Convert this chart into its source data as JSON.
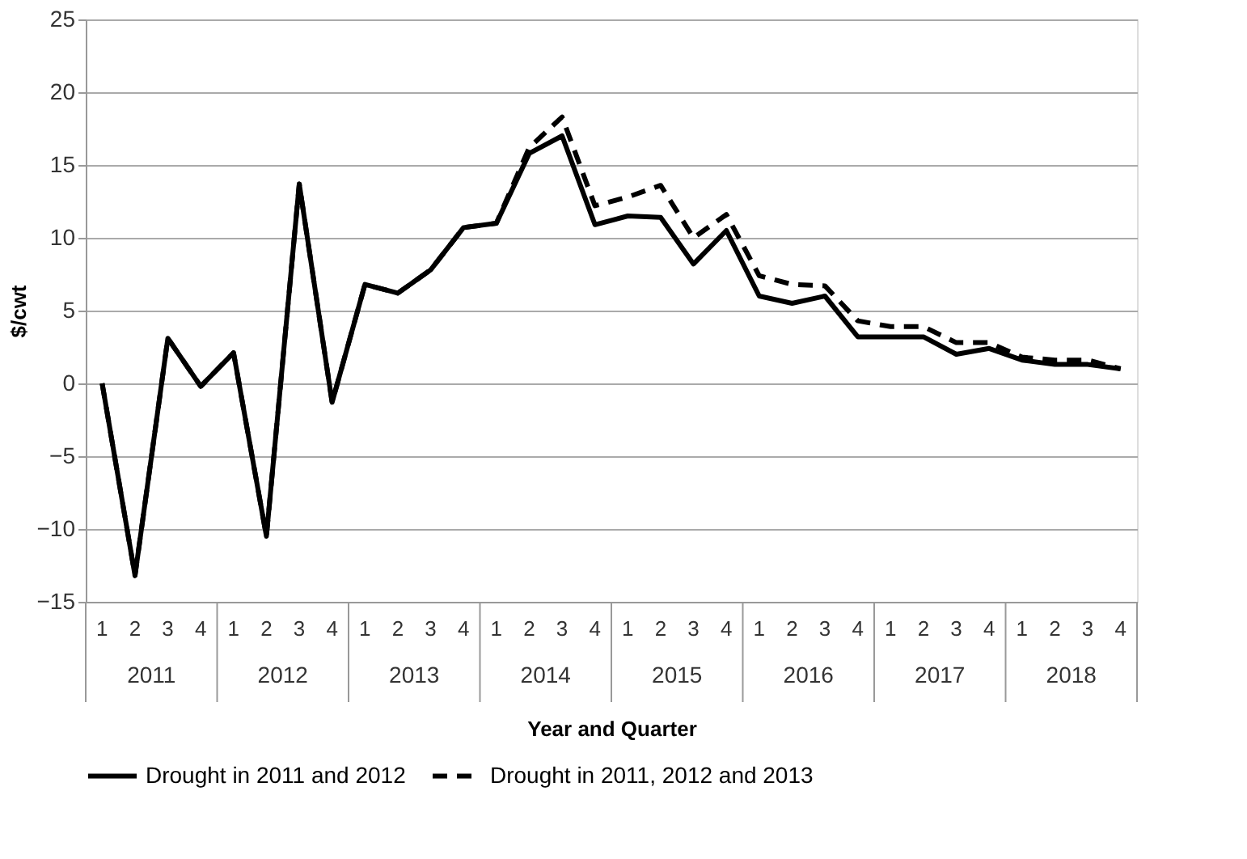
{
  "chart_data": {
    "type": "line",
    "xlabel": "Year and Quarter",
    "ylabel": "$/cwt",
    "categories": [
      "1",
      "2",
      "3",
      "4",
      "1",
      "2",
      "3",
      "4",
      "1",
      "2",
      "3",
      "4",
      "1",
      "2",
      "3",
      "4",
      "1",
      "2",
      "3",
      "4",
      "1",
      "2",
      "3",
      "4",
      "1",
      "2",
      "3",
      "4",
      "1",
      "2",
      "3",
      "4"
    ],
    "annotations": [
      "2011",
      "2012",
      "2013",
      "2014",
      "2015",
      "2016",
      "2017",
      "2018"
    ],
    "series": [
      {
        "name": "Drought in 2011 and 2012",
        "color": "#000000",
        "line_style": "solid",
        "values": [
          0,
          -13.2,
          3.1,
          -0.2,
          2.1,
          -10.5,
          13.7,
          -1.3,
          6.8,
          6.2,
          7.8,
          10.7,
          11.0,
          15.8,
          17.0,
          10.9,
          11.5,
          11.4,
          8.2,
          10.5,
          6.0,
          5.5,
          6.0,
          3.2,
          3.2,
          3.2,
          2.0,
          2.4,
          1.6,
          1.3,
          1.3,
          1.0
        ]
      },
      {
        "name": "Drought in 2011, 2012 and 2013",
        "color": "#000000",
        "line_style": "dashed",
        "values": [
          0,
          -13.2,
          3.1,
          -0.2,
          2.1,
          -10.5,
          13.7,
          -1.3,
          6.8,
          6.2,
          7.8,
          10.7,
          11.0,
          16.2,
          18.3,
          12.2,
          12.8,
          13.6,
          10.0,
          11.6,
          7.4,
          6.8,
          6.7,
          4.3,
          3.9,
          3.9,
          2.8,
          2.8,
          1.8,
          1.6,
          1.6,
          1.0
        ]
      }
    ],
    "ylim": [
      -15,
      25
    ],
    "yticks": [
      -15,
      -10,
      -5,
      0,
      5,
      10,
      15,
      20,
      25
    ],
    "grid": "y",
    "legend": "bottom",
    "marker": "none"
  }
}
